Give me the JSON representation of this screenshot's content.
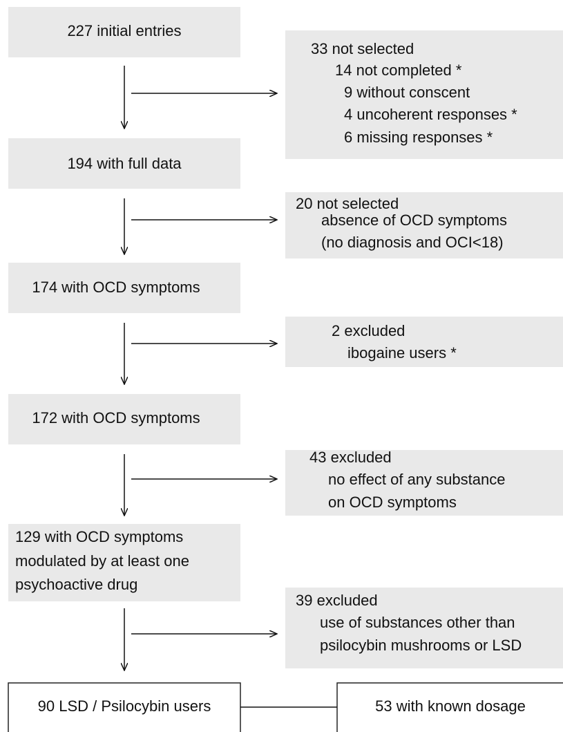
{
  "nodes": [
    {
      "label": "227 initial entries"
    },
    {
      "label": "194 with full data"
    },
    {
      "label": "174 with OCD symptoms"
    },
    {
      "label": "172 with OCD symptoms"
    },
    {
      "lines": [
        "129 with OCD symptoms",
        "modulated by at least one",
        "psychoactive drug"
      ]
    },
    {
      "label": "90 LSD / Psilocybin users"
    },
    {
      "label": "53 with known dosage"
    }
  ],
  "exclusions": [
    {
      "lines": [
        "33 not selected",
        "14 not completed *",
        "9 without conscent",
        "4 uncoherent responses *",
        "6 missing responses *"
      ]
    },
    {
      "lines": [
        "20 not selected",
        "absence of OCD symptoms",
        "(no diagnosis and OCI<18)"
      ]
    },
    {
      "lines": [
        "2  excluded",
        "ibogaine users *"
      ]
    },
    {
      "lines": [
        "43 excluded",
        "no effect of any substance",
        "on OCD symptoms"
      ]
    },
    {
      "lines": [
        "39 excluded",
        "use of substances other than",
        "psilocybin mushrooms or LSD"
      ]
    }
  ]
}
